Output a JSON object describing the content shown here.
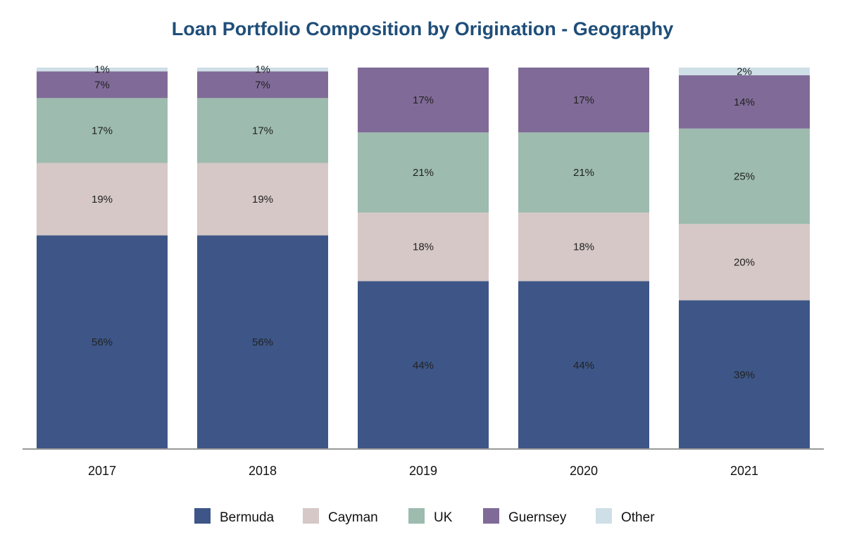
{
  "chart_data": {
    "type": "bar",
    "stacked": true,
    "title": "Loan Portfolio Composition by Origination - Geography",
    "categories": [
      "2017",
      "2018",
      "2019",
      "2020",
      "2021"
    ],
    "series": [
      {
        "name": "Bermuda",
        "color": "#3d5687",
        "values": [
          56,
          56,
          44,
          44,
          39
        ]
      },
      {
        "name": "Cayman",
        "color": "#d5c8c6",
        "values": [
          19,
          19,
          18,
          18,
          20
        ]
      },
      {
        "name": "UK",
        "color": "#9dbbae",
        "values": [
          17,
          17,
          21,
          21,
          25
        ]
      },
      {
        "name": "Guernsey",
        "color": "#806b98",
        "values": [
          7,
          7,
          17,
          17,
          14
        ]
      },
      {
        "name": "Other",
        "color": "#cfdfe7",
        "values": [
          1,
          1,
          0,
          0,
          2
        ]
      }
    ],
    "value_suffix": "%",
    "ylim": [
      0,
      100
    ],
    "xlabel": "",
    "ylabel": "",
    "legend_position": "bottom-center"
  }
}
